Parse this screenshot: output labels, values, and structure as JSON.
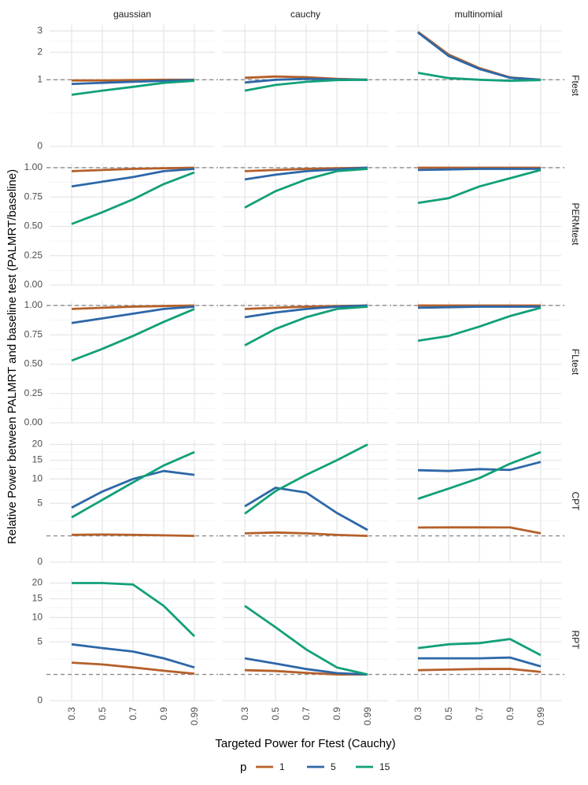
{
  "chart_data": {
    "type": "line",
    "facet_columns": [
      "gaussian",
      "cauchy",
      "multinomial"
    ],
    "facet_rows": [
      "Ftest",
      "PERMtest",
      "FLtest",
      "CPT",
      "RPT"
    ],
    "x": [
      "0.3",
      "0.5",
      "0.7",
      "0.9",
      "0.99"
    ],
    "xlabel": "Targeted Power for Ftest (Cauchy)",
    "ylabel": "Relative Power between PALMRT and baseline test (PALMRT/baseline)",
    "reference_line": 1,
    "legend": {
      "title": "p",
      "position": "bottom",
      "entries": [
        {
          "name": "1",
          "color": "#b5602a"
        },
        {
          "name": "5",
          "color": "#2d67a8"
        },
        {
          "name": "15",
          "color": "#12a079"
        }
      ]
    },
    "rows": [
      {
        "name": "Ftest",
        "scale": "sqrt",
        "y_range": [
          0,
          3.35
        ],
        "ticks": [
          0,
          1,
          2,
          3
        ],
        "minor_ticks": [
          0.25,
          2.5
        ],
        "panels": [
          {
            "column": "gaussian",
            "series": [
              {
                "name": "1",
                "values": [
                  0.98,
                  0.98,
                  0.99,
                  1.0,
                  1.0
                ]
              },
              {
                "name": "5",
                "values": [
                  0.88,
                  0.91,
                  0.94,
                  0.97,
                  0.99
                ]
              },
              {
                "name": "15",
                "values": [
                  0.6,
                  0.7,
                  0.8,
                  0.91,
                  0.97
                ]
              }
            ]
          },
          {
            "column": "cauchy",
            "series": [
              {
                "name": "1",
                "values": [
                  1.06,
                  1.1,
                  1.08,
                  1.03,
                  1.0
                ]
              },
              {
                "name": "5",
                "values": [
                  0.92,
                  1.0,
                  1.03,
                  1.01,
                  1.0
                ]
              },
              {
                "name": "15",
                "values": [
                  0.7,
                  0.85,
                  0.94,
                  0.99,
                  1.0
                ]
              }
            ]
          },
          {
            "column": "multinomial",
            "series": [
              {
                "name": "1",
                "values": [
                  2.95,
                  1.9,
                  1.38,
                  1.07,
                  1.0
                ]
              },
              {
                "name": "5",
                "values": [
                  2.92,
                  1.84,
                  1.35,
                  1.06,
                  1.0
                ]
              },
              {
                "name": "15",
                "values": [
                  1.22,
                  1.05,
                  1.0,
                  0.97,
                  0.99
                ]
              }
            ]
          }
        ]
      },
      {
        "name": "PERMtest",
        "scale": "linear",
        "y_range": [
          0,
          1.04
        ],
        "ticks": [
          0.0,
          0.25,
          0.5,
          0.75,
          1.0
        ],
        "minor_ticks": [
          0.125,
          0.375,
          0.625,
          0.875
        ],
        "panels": [
          {
            "column": "gaussian",
            "series": [
              {
                "name": "1",
                "values": [
                  0.97,
                  0.98,
                  0.99,
                  0.995,
                  1.0
                ]
              },
              {
                "name": "5",
                "values": [
                  0.84,
                  0.88,
                  0.92,
                  0.97,
                  0.99
                ]
              },
              {
                "name": "15",
                "values": [
                  0.52,
                  0.62,
                  0.73,
                  0.86,
                  0.96
                ]
              }
            ]
          },
          {
            "column": "cauchy",
            "series": [
              {
                "name": "1",
                "values": [
                  0.97,
                  0.98,
                  0.99,
                  0.995,
                  1.0
                ]
              },
              {
                "name": "5",
                "values": [
                  0.9,
                  0.94,
                  0.97,
                  0.985,
                  1.0
                ]
              },
              {
                "name": "15",
                "values": [
                  0.66,
                  0.8,
                  0.9,
                  0.97,
                  0.99
                ]
              }
            ]
          },
          {
            "column": "multinomial",
            "series": [
              {
                "name": "1",
                "values": [
                  1.0,
                  1.0,
                  1.0,
                  1.0,
                  1.0
                ]
              },
              {
                "name": "5",
                "values": [
                  0.98,
                  0.985,
                  0.99,
                  0.99,
                  0.99
                ]
              },
              {
                "name": "15",
                "values": [
                  0.7,
                  0.74,
                  0.84,
                  0.91,
                  0.98
                ]
              }
            ]
          }
        ]
      },
      {
        "name": "FLtest",
        "scale": "linear",
        "y_range": [
          0,
          1.04
        ],
        "ticks": [
          0.0,
          0.25,
          0.5,
          0.75,
          1.0
        ],
        "minor_ticks": [
          0.125,
          0.375,
          0.625,
          0.875
        ],
        "panels": [
          {
            "column": "gaussian",
            "series": [
              {
                "name": "1",
                "values": [
                  0.97,
                  0.98,
                  0.99,
                  0.995,
                  1.0
                ]
              },
              {
                "name": "5",
                "values": [
                  0.85,
                  0.89,
                  0.93,
                  0.97,
                  0.99
                ]
              },
              {
                "name": "15",
                "values": [
                  0.53,
                  0.63,
                  0.74,
                  0.86,
                  0.97
                ]
              }
            ]
          },
          {
            "column": "cauchy",
            "series": [
              {
                "name": "1",
                "values": [
                  0.97,
                  0.98,
                  0.99,
                  0.995,
                  1.0
                ]
              },
              {
                "name": "5",
                "values": [
                  0.9,
                  0.94,
                  0.97,
                  0.99,
                  1.0
                ]
              },
              {
                "name": "15",
                "values": [
                  0.66,
                  0.8,
                  0.9,
                  0.97,
                  0.99
                ]
              }
            ]
          },
          {
            "column": "multinomial",
            "series": [
              {
                "name": "1",
                "values": [
                  1.0,
                  1.0,
                  1.0,
                  1.0,
                  1.0
                ]
              },
              {
                "name": "5",
                "values": [
                  0.98,
                  0.985,
                  0.99,
                  0.99,
                  0.99
                ]
              },
              {
                "name": "15",
                "values": [
                  0.7,
                  0.74,
                  0.82,
                  0.91,
                  0.98
                ]
              }
            ]
          }
        ]
      },
      {
        "name": "CPT",
        "scale": "sqrt",
        "y_range": [
          0,
          21.5
        ],
        "ticks": [
          0,
          5,
          10,
          15,
          20
        ],
        "minor_ticks": [
          2.5,
          7.5,
          12.5,
          17.5
        ],
        "panels": [
          {
            "column": "gaussian",
            "series": [
              {
                "name": "1",
                "values": [
                  1.08,
                  1.1,
                  1.08,
                  1.04,
                  1.0
                ]
              },
              {
                "name": "5",
                "values": [
                  4.3,
                  7.2,
                  10.0,
                  12.0,
                  11.0
                ]
              },
              {
                "name": "15",
                "values": [
                  2.9,
                  5.6,
                  9.2,
                  13.5,
                  17.5
                ]
              }
            ]
          },
          {
            "column": "cauchy",
            "series": [
              {
                "name": "1",
                "values": [
                  1.2,
                  1.27,
                  1.2,
                  1.07,
                  1.0
                ]
              },
              {
                "name": "5",
                "values": [
                  4.5,
                  8.0,
                  7.0,
                  3.5,
                  1.5
                ]
              },
              {
                "name": "15",
                "values": [
                  3.4,
                  7.3,
                  11.0,
                  15.0,
                  20.0
                ]
              }
            ]
          },
          {
            "column": "multinomial",
            "series": [
              {
                "name": "1",
                "values": [
                  1.73,
                  1.75,
                  1.75,
                  1.74,
                  1.2
                ]
              },
              {
                "name": "5",
                "values": [
                  12.2,
                  12.0,
                  12.5,
                  12.3,
                  14.5
                ]
              },
              {
                "name": "15",
                "values": [
                  5.8,
                  7.8,
                  10.2,
                  14.0,
                  17.5
                ]
              }
            ]
          }
        ]
      },
      {
        "name": "RPT",
        "scale": "sqrt",
        "y_range": [
          0,
          21.5
        ],
        "ticks": [
          0,
          5,
          10,
          15,
          20
        ],
        "minor_ticks": [
          2.5,
          7.5,
          12.5,
          17.5
        ],
        "panels": [
          {
            "column": "gaussian",
            "series": [
              {
                "name": "1",
                "values": [
                  2.1,
                  1.9,
                  1.6,
                  1.3,
                  1.05
                ]
              },
              {
                "name": "5",
                "values": [
                  4.6,
                  4.0,
                  3.5,
                  2.6,
                  1.6
                ]
              },
              {
                "name": "15",
                "values": [
                  20.0,
                  20.0,
                  19.5,
                  13.0,
                  6.0
                ]
              }
            ]
          },
          {
            "column": "cauchy",
            "series": [
              {
                "name": "1",
                "values": [
                  1.35,
                  1.28,
                  1.12,
                  1.0,
                  1.0
                ]
              },
              {
                "name": "5",
                "values": [
                  2.6,
                  2.0,
                  1.45,
                  1.1,
                  1.0
                ]
              },
              {
                "name": "15",
                "values": [
                  13.0,
                  7.8,
                  3.8,
                  1.6,
                  1.0
                ]
              }
            ]
          },
          {
            "column": "multinomial",
            "series": [
              {
                "name": "1",
                "values": [
                  1.35,
                  1.4,
                  1.45,
                  1.47,
                  1.2
                ]
              },
              {
                "name": "5",
                "values": [
                  2.6,
                  2.6,
                  2.6,
                  2.7,
                  1.7
                ]
              },
              {
                "name": "15",
                "values": [
                  4.0,
                  4.6,
                  4.8,
                  5.5,
                  3.0
                ]
              }
            ]
          }
        ]
      }
    ]
  }
}
